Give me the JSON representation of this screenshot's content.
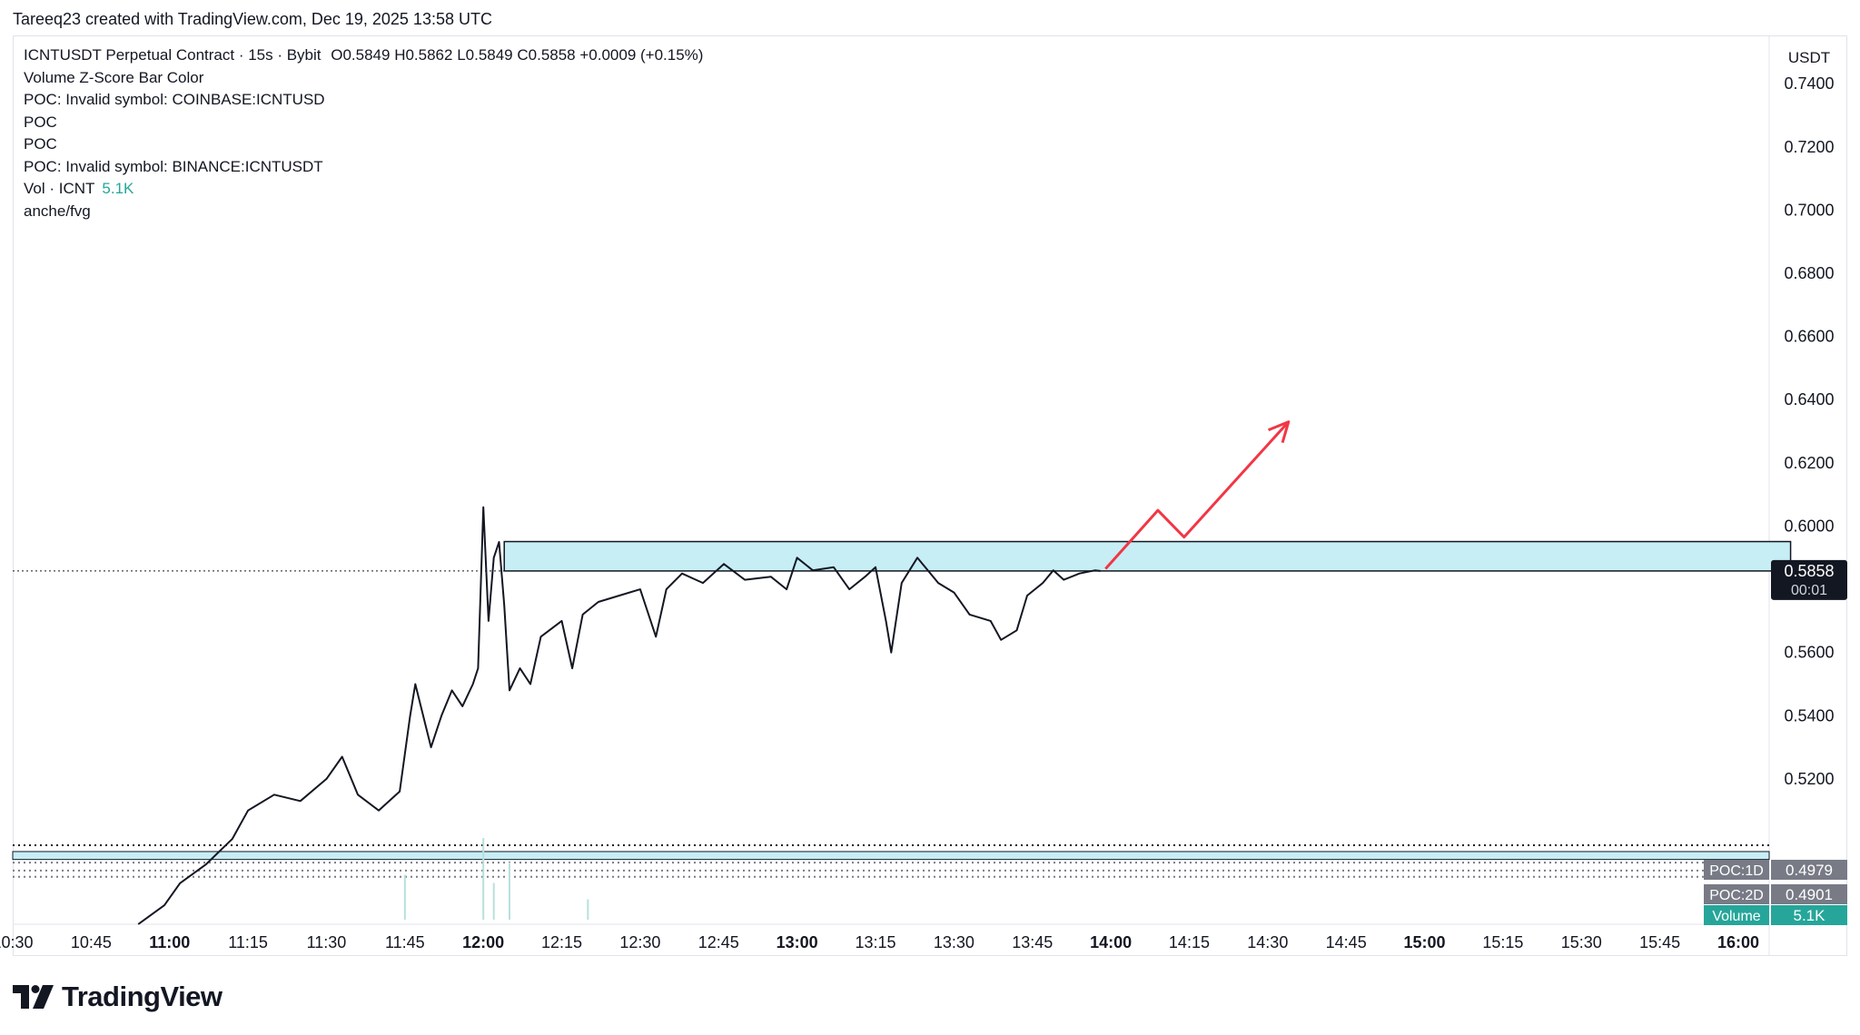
{
  "header": {
    "credit": "Tareeq23 created with TradingView.com, Dec 19, 2025 13:58 UTC"
  },
  "legend": {
    "symbol_line": "ICNTUSDT Perpetual Contract · 15s · Bybit",
    "ohlc": "O0.5849  H0.5862  L0.5849  C0.5858  +0.0009 (+0.15%)",
    "rows": [
      "Volume Z-Score Bar Color",
      "POC: Invalid symbol: COINBASE:ICNTUSD",
      "POC",
      "POC",
      "POC: Invalid symbol: BINANCE:ICNTUSDT"
    ],
    "vol_label": "Vol · ICNT",
    "vol_value": "5.1K",
    "last_row": "anche/fvg"
  },
  "brand": {
    "name": "TradingView"
  },
  "colors": {
    "price_line": "#131722",
    "zone_fill": "#c7eef5",
    "arrow": "#f23645",
    "volume_up": "#26a69a",
    "volume_down": "#ef5350",
    "poc_label_bg": "#787b86",
    "volume_label_bg": "#26a69a",
    "last_price_bg": "#131722"
  },
  "chart_data": {
    "type": "line",
    "currency": "USDT",
    "x_ticks": [
      {
        "label": "10:30",
        "bold": false
      },
      {
        "label": "10:45",
        "bold": false
      },
      {
        "label": "11:00",
        "bold": true
      },
      {
        "label": "11:15",
        "bold": false
      },
      {
        "label": "11:30",
        "bold": false
      },
      {
        "label": "11:45",
        "bold": false
      },
      {
        "label": "12:00",
        "bold": true
      },
      {
        "label": "12:15",
        "bold": false
      },
      {
        "label": "12:30",
        "bold": false
      },
      {
        "label": "12:45",
        "bold": false
      },
      {
        "label": "13:00",
        "bold": true
      },
      {
        "label": "13:15",
        "bold": false
      },
      {
        "label": "13:30",
        "bold": false
      },
      {
        "label": "13:45",
        "bold": false
      },
      {
        "label": "14:00",
        "bold": true
      },
      {
        "label": "14:15",
        "bold": false
      },
      {
        "label": "14:30",
        "bold": false
      },
      {
        "label": "14:45",
        "bold": false
      },
      {
        "label": "15:00",
        "bold": true
      },
      {
        "label": "15:15",
        "bold": false
      },
      {
        "label": "15:30",
        "bold": false
      },
      {
        "label": "15:45",
        "bold": false
      },
      {
        "label": "16:00",
        "bold": true
      }
    ],
    "y_ticks": [
      "0.7400",
      "0.7200",
      "0.7000",
      "0.6800",
      "0.6600",
      "0.6400",
      "0.6200",
      "0.6000",
      "0.5600",
      "0.5400",
      "0.5200"
    ],
    "ylim": [
      0.474,
      0.755
    ],
    "xlim": [
      "10:30",
      "16:00"
    ],
    "series": [
      {
        "values": [
          {
            "x": "10:54",
            "y": 0.474
          },
          {
            "x": "10:59",
            "y": 0.48
          },
          {
            "x": "11:02",
            "y": 0.487
          },
          {
            "x": "11:07",
            "y": 0.493
          },
          {
            "x": "11:12",
            "y": 0.501
          },
          {
            "x": "11:15",
            "y": 0.51
          },
          {
            "x": "11:20",
            "y": 0.515
          },
          {
            "x": "11:25",
            "y": 0.513
          },
          {
            "x": "11:30",
            "y": 0.52
          },
          {
            "x": "11:33",
            "y": 0.527
          },
          {
            "x": "11:36",
            "y": 0.515
          },
          {
            "x": "11:40",
            "y": 0.51
          },
          {
            "x": "11:44",
            "y": 0.516
          },
          {
            "x": "11:46",
            "y": 0.54
          },
          {
            "x": "11:47",
            "y": 0.55
          },
          {
            "x": "11:50",
            "y": 0.53
          },
          {
            "x": "11:52",
            "y": 0.54
          },
          {
            "x": "11:54",
            "y": 0.548
          },
          {
            "x": "11:56",
            "y": 0.543
          },
          {
            "x": "11:58",
            "y": 0.55
          },
          {
            "x": "11:59",
            "y": 0.555
          },
          {
            "x": "12:00",
            "y": 0.606
          },
          {
            "x": "12:01",
            "y": 0.57
          },
          {
            "x": "12:02",
            "y": 0.59
          },
          {
            "x": "12:03",
            "y": 0.595
          },
          {
            "x": "12:04",
            "y": 0.575
          },
          {
            "x": "12:05",
            "y": 0.548
          },
          {
            "x": "12:07",
            "y": 0.555
          },
          {
            "x": "12:09",
            "y": 0.55
          },
          {
            "x": "12:11",
            "y": 0.565
          },
          {
            "x": "12:15",
            "y": 0.57
          },
          {
            "x": "12:17",
            "y": 0.555
          },
          {
            "x": "12:19",
            "y": 0.572
          },
          {
            "x": "12:22",
            "y": 0.576
          },
          {
            "x": "12:26",
            "y": 0.578
          },
          {
            "x": "12:30",
            "y": 0.58
          },
          {
            "x": "12:33",
            "y": 0.565
          },
          {
            "x": "12:35",
            "y": 0.58
          },
          {
            "x": "12:38",
            "y": 0.585
          },
          {
            "x": "12:42",
            "y": 0.582
          },
          {
            "x": "12:46",
            "y": 0.588
          },
          {
            "x": "12:50",
            "y": 0.583
          },
          {
            "x": "12:55",
            "y": 0.584
          },
          {
            "x": "12:58",
            "y": 0.58
          },
          {
            "x": "13:00",
            "y": 0.59
          },
          {
            "x": "13:03",
            "y": 0.586
          },
          {
            "x": "13:07",
            "y": 0.587
          },
          {
            "x": "13:10",
            "y": 0.58
          },
          {
            "x": "13:13",
            "y": 0.584
          },
          {
            "x": "13:15",
            "y": 0.587
          },
          {
            "x": "13:17",
            "y": 0.57
          },
          {
            "x": "13:18",
            "y": 0.56
          },
          {
            "x": "13:20",
            "y": 0.582
          },
          {
            "x": "13:23",
            "y": 0.59
          },
          {
            "x": "13:27",
            "y": 0.582
          },
          {
            "x": "13:30",
            "y": 0.579
          },
          {
            "x": "13:33",
            "y": 0.572
          },
          {
            "x": "13:37",
            "y": 0.57
          },
          {
            "x": "13:39",
            "y": 0.564
          },
          {
            "x": "13:42",
            "y": 0.567
          },
          {
            "x": "13:44",
            "y": 0.578
          },
          {
            "x": "13:47",
            "y": 0.582
          },
          {
            "x": "13:49",
            "y": 0.586
          },
          {
            "x": "13:51",
            "y": 0.583
          },
          {
            "x": "13:54",
            "y": 0.585
          },
          {
            "x": "13:57",
            "y": 0.586
          },
          {
            "x": "13:58",
            "y": 0.5858
          }
        ]
      }
    ],
    "volume_spikes": [
      {
        "x": "11:45",
        "v": 0.55
      },
      {
        "x": "12:00",
        "v": 1.0
      },
      {
        "x": "12:05",
        "v": 0.7
      },
      {
        "x": "12:02",
        "v": 0.45
      },
      {
        "x": "12:20",
        "v": 0.25
      }
    ],
    "last_price": {
      "price": "0.5858",
      "countdown": "00:01"
    },
    "price_labels": [
      {
        "tag": "POC:1D",
        "value": "0.4979"
      },
      {
        "tag": "POC:2D",
        "value": "0.4901"
      },
      {
        "tag": "Volume",
        "value": "5.1K"
      }
    ],
    "annotations": {
      "zone": {
        "x0": "12:04",
        "x1": "16:10",
        "y0": 0.5858,
        "y1": 0.5951
      },
      "arrow": [
        {
          "x": "13:59",
          "y": 0.5865
        },
        {
          "x": "14:09",
          "y": 0.605
        },
        {
          "x": "14:14",
          "y": 0.5965
        },
        {
          "x": "14:34",
          "y": 0.633
        }
      ],
      "lower_band": {
        "y0": 0.4945,
        "y1": 0.497
      }
    }
  }
}
